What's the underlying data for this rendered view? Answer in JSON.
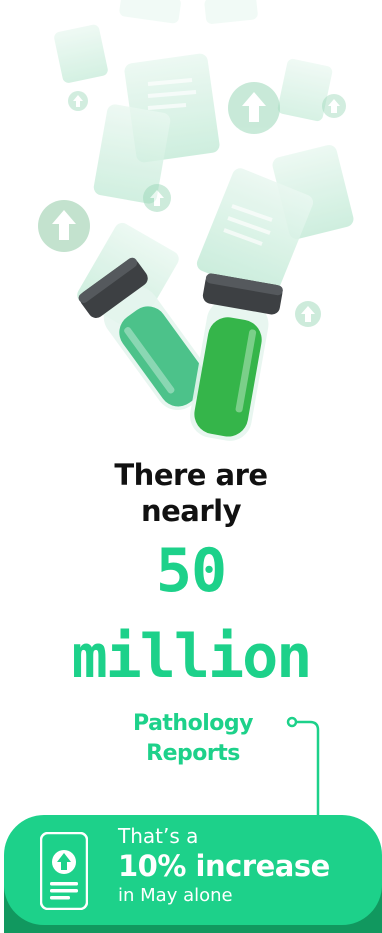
{
  "colors": {
    "accent": "#1dd18a",
    "accent_dark": "#11985f",
    "text_dark": "#111111",
    "document": "#cfeee0",
    "vial_left_liquid": "#4cc28a",
    "vial_right_liquid": "#35b54a",
    "cap": "#3d4043"
  },
  "illustration": {
    "icons": [
      "document-icon",
      "upload-icon",
      "vial-icon"
    ]
  },
  "headline": {
    "line1": "There are",
    "line2": "nearly"
  },
  "stat": {
    "number": "50",
    "unit": "million",
    "label_line1": "Pathology",
    "label_line2": "Reports"
  },
  "card": {
    "line1": "That’s a",
    "line2": "10% increase",
    "line3": "in May alone",
    "icon": "report-upload-icon"
  }
}
